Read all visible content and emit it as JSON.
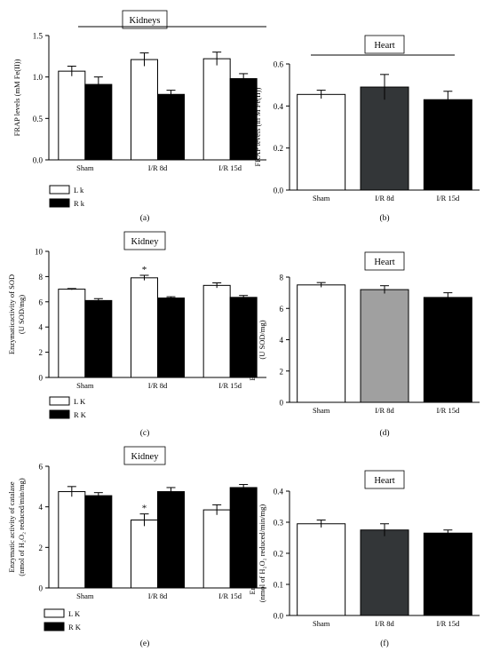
{
  "chart_data": [
    {
      "type": "bar",
      "panel_label": "(a)",
      "title": "Kidneys",
      "ylabel": "FRAP levels (mM Fe(II))",
      "ylim": [
        0,
        1.5
      ],
      "yticks": [
        "0.0",
        "0.5",
        "1.0",
        "1.5"
      ],
      "categories": [
        "Sham",
        "I/R 8d",
        "I/R 15d"
      ],
      "series": [
        {
          "name": "L k",
          "color": "#ffffff",
          "values": [
            1.07,
            1.21,
            1.22
          ],
          "errors": [
            0.06,
            0.08,
            0.08
          ]
        },
        {
          "name": "R k",
          "color": "#000000",
          "values": [
            0.91,
            0.79,
            0.98
          ],
          "errors": [
            0.09,
            0.05,
            0.06
          ]
        }
      ],
      "significance_bar": true,
      "annotations": []
    },
    {
      "type": "bar",
      "panel_label": "(b)",
      "title": "Heart",
      "ylabel": "FRAP levels (m M Fe(II))",
      "ylim": [
        0,
        0.6
      ],
      "yticks": [
        "0.0",
        "0.2",
        "0.4",
        "0.6"
      ],
      "categories": [
        "Sham",
        "I/R 8d",
        "I/R 15d"
      ],
      "colors": [
        "#ffffff",
        "#333638",
        "#000000"
      ],
      "values": [
        0.455,
        0.49,
        0.43
      ],
      "errors": [
        0.02,
        0.06,
        0.04
      ],
      "significance_bar": true
    },
    {
      "type": "bar",
      "panel_label": "(c)",
      "title": "Kidney",
      "ylabel": "Enzymaticactivity of SOD",
      "ylabel2": "(U SOD/mg)",
      "ylim": [
        0,
        10
      ],
      "yticks": [
        "0",
        "2",
        "4",
        "6",
        "8",
        "10"
      ],
      "categories": [
        "Sham",
        "I/R 8d",
        "I/R 15d"
      ],
      "series": [
        {
          "name": "L K",
          "color": "#ffffff",
          "values": [
            7.0,
            7.9,
            7.3
          ],
          "errors": [
            0.05,
            0.2,
            0.2
          ]
        },
        {
          "name": "R K",
          "color": "#000000",
          "values": [
            6.1,
            6.3,
            6.35
          ],
          "errors": [
            0.15,
            0.1,
            0.15
          ]
        }
      ],
      "annotations": [
        {
          "text": "*",
          "category": "I/R 8d",
          "series": "L K"
        }
      ]
    },
    {
      "type": "bar",
      "panel_label": "(d)",
      "title": "Heart",
      "ylabel": "Enzymatic activity of SOD",
      "ylabel2": "(U SOD/mg)",
      "ylim": [
        0,
        8
      ],
      "yticks": [
        "0",
        "2",
        "4",
        "6",
        "8"
      ],
      "categories": [
        "Sham",
        "I/R 8d",
        "I/R 15d"
      ],
      "colors": [
        "#ffffff",
        "#a0a0a0",
        "#000000"
      ],
      "values": [
        7.5,
        7.2,
        6.7
      ],
      "errors": [
        0.15,
        0.25,
        0.3
      ]
    },
    {
      "type": "bar",
      "panel_label": "(e)",
      "title": "Kidney",
      "ylabel": "Enzymatic activity of catalase",
      "ylabel2": "(nmol of H₂O₂ reduced/min/mg)",
      "ylim": [
        0,
        6
      ],
      "yticks": [
        "0",
        "2",
        "4",
        "6"
      ],
      "categories": [
        "Sham",
        "I/R 8d",
        "I/R 15d"
      ],
      "series": [
        {
          "name": "L K",
          "color": "#ffffff",
          "values": [
            4.75,
            3.35,
            3.85
          ],
          "errors": [
            0.25,
            0.3,
            0.25
          ]
        },
        {
          "name": "R K",
          "color": "#000000",
          "values": [
            4.55,
            4.75,
            4.95
          ],
          "errors": [
            0.15,
            0.2,
            0.15
          ]
        }
      ],
      "annotations": [
        {
          "text": "*",
          "category": "I/R 8d",
          "series": "L K"
        }
      ]
    },
    {
      "type": "bar",
      "panel_label": "(f)",
      "title": "Heart",
      "ylabel": "Enzymatic activity catalase",
      "ylabel2": "(nmol of H₂O₂ reduced/min/mg)",
      "ylim": [
        0,
        0.4
      ],
      "yticks": [
        "0.0",
        "0.1",
        "0.2",
        "0.3",
        "0.4"
      ],
      "categories": [
        "Sham",
        "I/R 8d",
        "I/R 15d"
      ],
      "colors": [
        "#ffffff",
        "#333638",
        "#000000"
      ],
      "values": [
        0.295,
        0.275,
        0.265
      ],
      "errors": [
        0.012,
        0.02,
        0.01
      ]
    }
  ]
}
